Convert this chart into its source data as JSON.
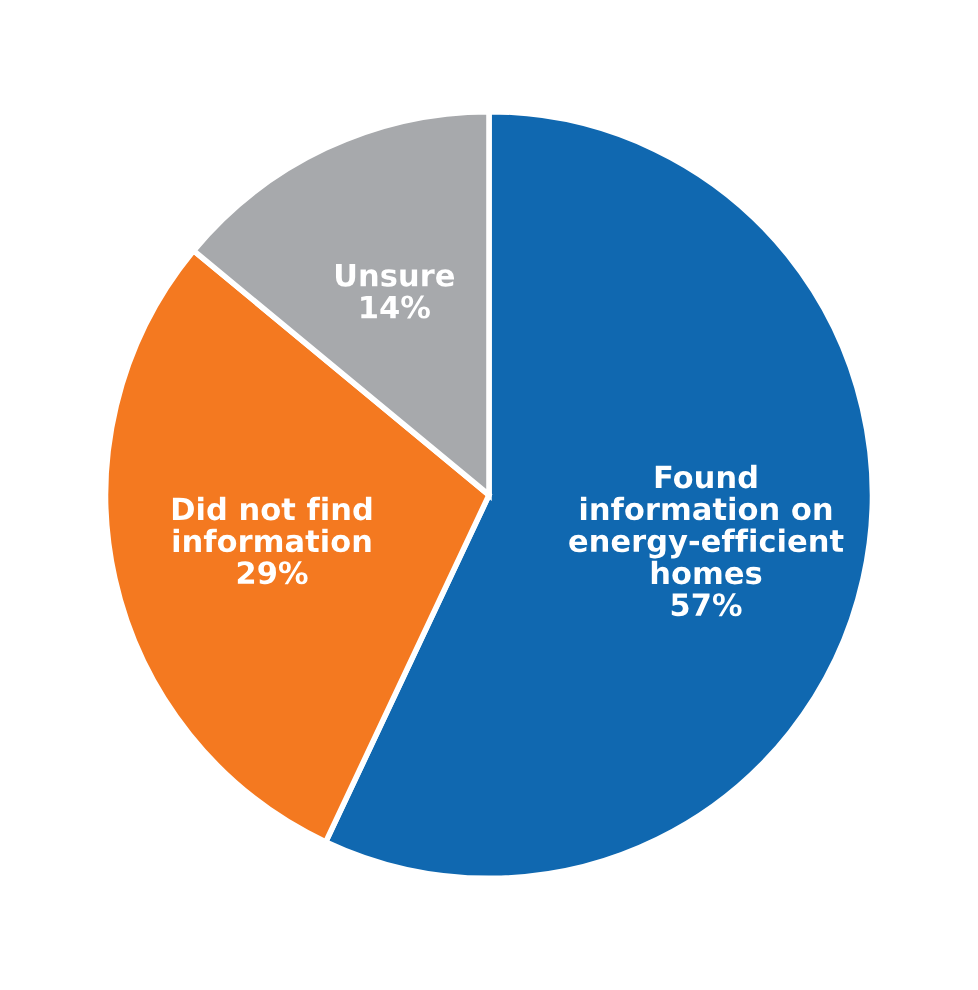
{
  "chart_data": {
    "type": "pie",
    "categories": [
      "Found\ninformation on\nenergy-efficient\nhomes",
      "Did not find\ninformation",
      "Unsure"
    ],
    "values": [
      57,
      29,
      14
    ],
    "value_labels": [
      "57%",
      "29%",
      "14%"
    ],
    "colors": [
      "#1068b0",
      "#f47920",
      "#a7a9ac"
    ]
  }
}
